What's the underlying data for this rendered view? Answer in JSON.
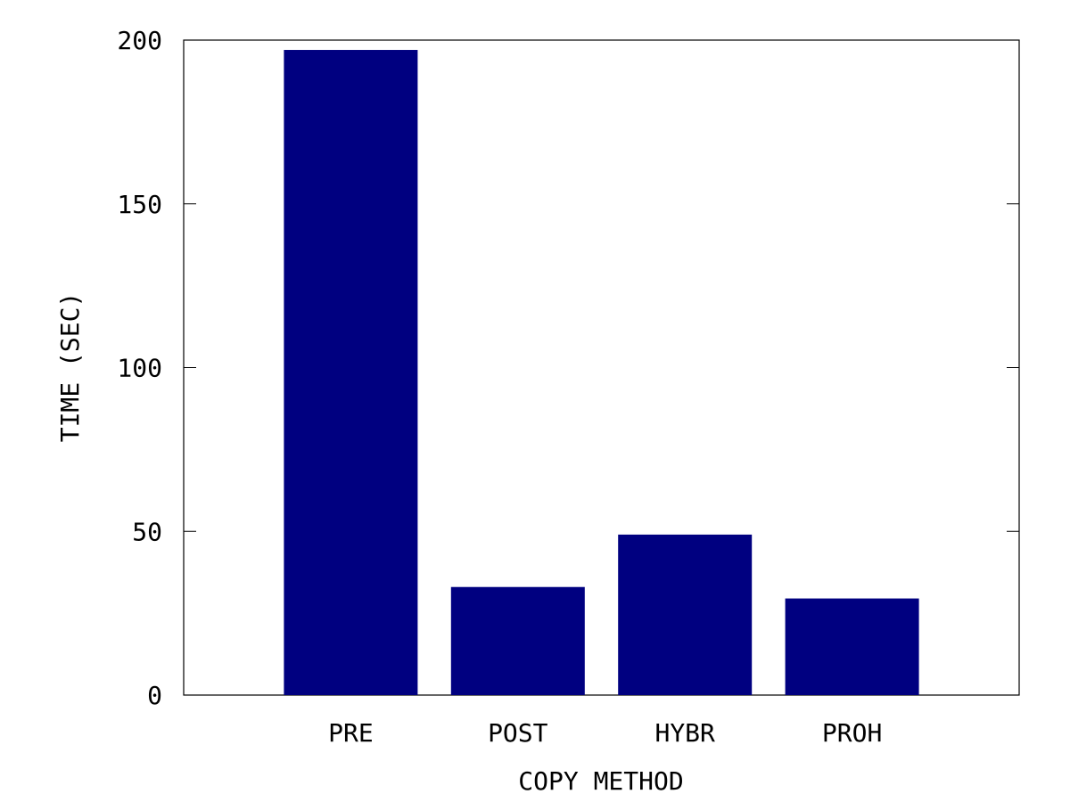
{
  "chart_data": {
    "type": "bar",
    "title": "",
    "xlabel": "COPY METHOD",
    "ylabel": "TIME (SEC)",
    "categories": [
      "PRE",
      "POST",
      "HYBR",
      "PROH"
    ],
    "values": [
      197,
      33,
      49,
      29.5
    ],
    "ylim": [
      0,
      200
    ],
    "yticks": [
      0,
      50,
      100,
      150,
      200
    ],
    "grid": false,
    "legend": "none",
    "bar_color": "#000080",
    "axis_color": "#000000"
  }
}
